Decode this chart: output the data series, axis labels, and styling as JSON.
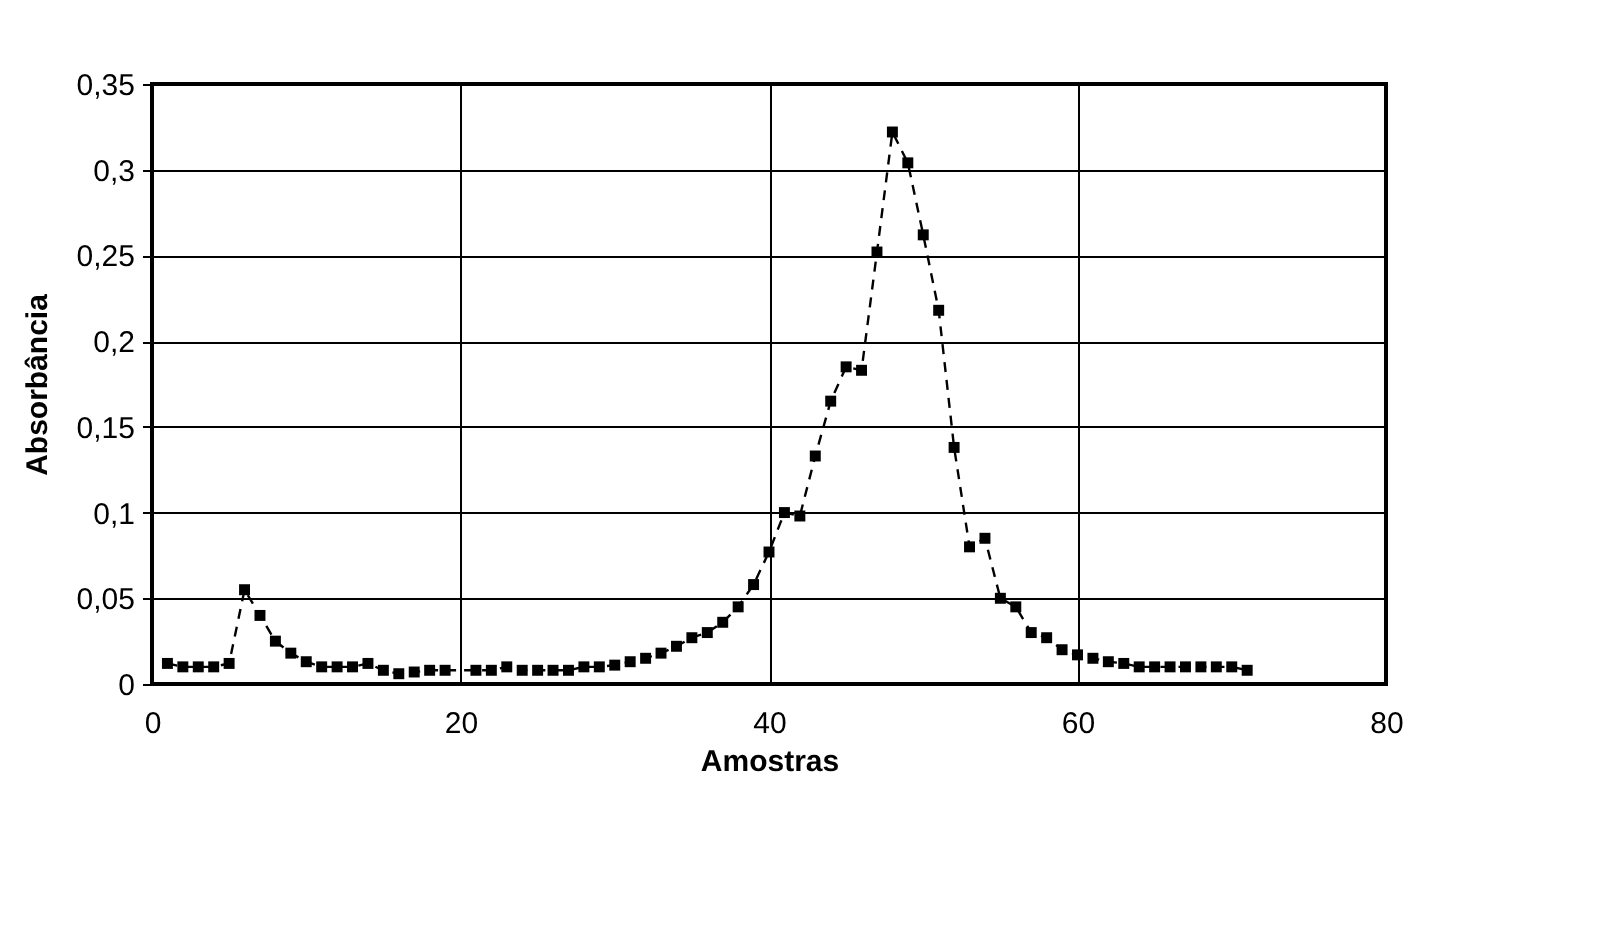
{
  "chart_data": {
    "type": "line",
    "xlabel": "Amostras",
    "ylabel": "Absorbância",
    "x": [
      1,
      2,
      3,
      4,
      5,
      6,
      7,
      8,
      9,
      10,
      11,
      12,
      13,
      14,
      15,
      16,
      17,
      18,
      19,
      21,
      22,
      23,
      24,
      25,
      26,
      27,
      28,
      29,
      30,
      31,
      32,
      33,
      34,
      35,
      36,
      37,
      38,
      39,
      40,
      41,
      42,
      43,
      44,
      45,
      46,
      47,
      48,
      49,
      50,
      51,
      52,
      53,
      54,
      55,
      56,
      57,
      58,
      59,
      60,
      61,
      62,
      63,
      64,
      65,
      66,
      67,
      68,
      69,
      70,
      71
    ],
    "series": [
      {
        "color": "#000000",
        "values": [
          0.012,
          0.01,
          0.01,
          0.01,
          0.012,
          0.055,
          0.04,
          0.025,
          0.018,
          0.013,
          0.01,
          0.01,
          0.01,
          0.012,
          0.008,
          0.006,
          0.007,
          0.008,
          0.008,
          0.008,
          0.008,
          0.01,
          0.008,
          0.008,
          0.008,
          0.008,
          0.01,
          0.01,
          0.011,
          0.013,
          0.015,
          0.018,
          0.022,
          0.027,
          0.03,
          0.036,
          0.045,
          0.058,
          0.077,
          0.1,
          0.098,
          0.133,
          0.165,
          0.185,
          0.183,
          0.252,
          0.322,
          0.304,
          0.262,
          0.218,
          0.138,
          0.08,
          0.085,
          0.05,
          0.045,
          0.03,
          0.027,
          0.02,
          0.017,
          0.015,
          0.013,
          0.012,
          0.01,
          0.01,
          0.01,
          0.01,
          0.01,
          0.01,
          0.01,
          0.008
        ]
      }
    ],
    "xlim": [
      0,
      80
    ],
    "xticks": [
      0,
      20,
      40,
      60,
      80
    ],
    "ylim": [
      0,
      0.35
    ],
    "yticks": [
      0,
      {
        "value": 0.05,
        "label": "0,05"
      },
      {
        "value": 0.1,
        "label": "0,1"
      },
      {
        "value": 0.15,
        "label": "0,15"
      },
      {
        "value": 0.2,
        "label": "0,2"
      },
      {
        "value": 0.25,
        "label": "0,25"
      },
      {
        "value": 0.3,
        "label": "0,3"
      },
      {
        "value": 0.35,
        "label": "0,35"
      }
    ],
    "grid": true,
    "marker": "square",
    "line_style": "dashed"
  }
}
